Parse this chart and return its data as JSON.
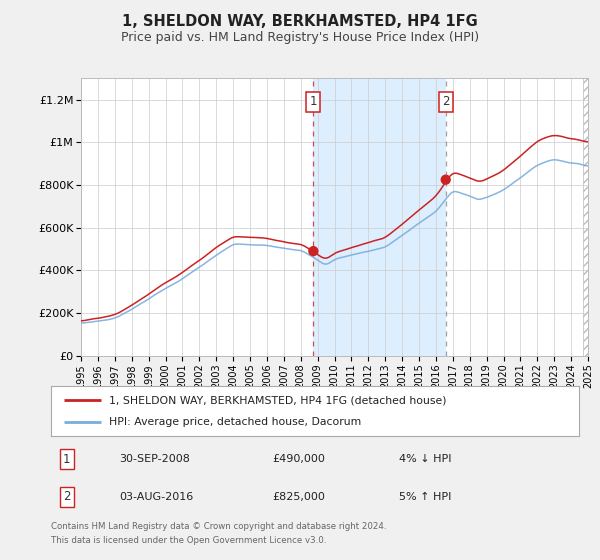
{
  "title": "1, SHELDON WAY, BERKHAMSTED, HP4 1FG",
  "subtitle": "Price paid vs. HM Land Registry's House Price Index (HPI)",
  "xlim_start": 1995,
  "xlim_end": 2025,
  "ylim_min": 0,
  "ylim_max": 1300000,
  "yticks": [
    0,
    200000,
    400000,
    600000,
    800000,
    1000000,
    1200000
  ],
  "ytick_labels": [
    "£0",
    "£200K",
    "£400K",
    "£600K",
    "£800K",
    "£1M",
    "£1.2M"
  ],
  "sale1_x": 2008.748,
  "sale1_y": 490000,
  "sale2_x": 2016.581,
  "sale2_y": 825000,
  "shaded_start": 2008.748,
  "shaded_end": 2016.581,
  "line_color_property": "#cc2222",
  "line_color_hpi": "#7aaddd",
  "fig_bg_color": "#f0f0f0",
  "plot_bg_color": "#ffffff",
  "shaded_bg_color": "#ddeeff",
  "grid_color": "#cccccc",
  "legend_line1": "1, SHELDON WAY, BERKHAMSTED, HP4 1FG (detached house)",
  "legend_line2": "HPI: Average price, detached house, Dacorum",
  "table_row1_num": "1",
  "table_row1_date": "30-SEP-2008",
  "table_row1_price": "£490,000",
  "table_row1_hpi": "4% ↓ HPI",
  "table_row2_num": "2",
  "table_row2_date": "03-AUG-2016",
  "table_row2_price": "£825,000",
  "table_row2_hpi": "5% ↑ HPI",
  "footer_line1": "Contains HM Land Registry data © Crown copyright and database right 2024.",
  "footer_line2": "This data is licensed under the Open Government Licence v3.0.",
  "title_fontsize": 10.5,
  "subtitle_fontsize": 9
}
